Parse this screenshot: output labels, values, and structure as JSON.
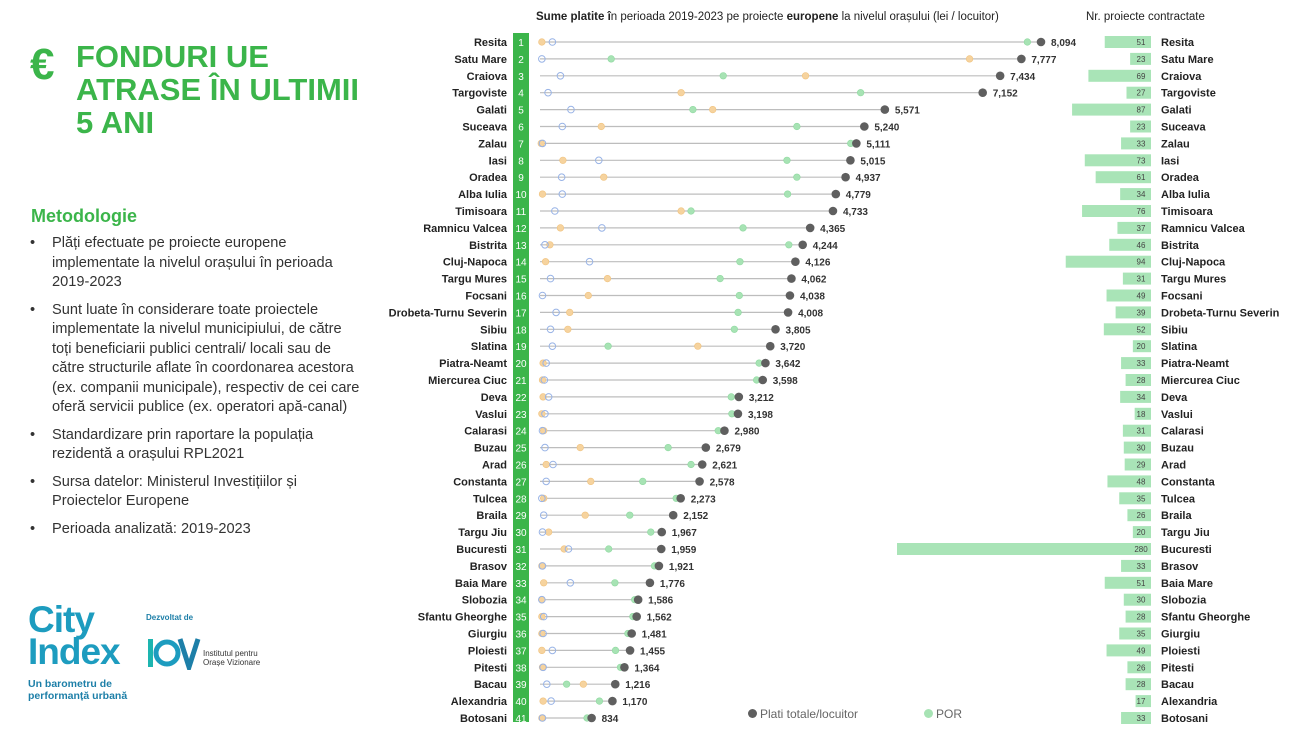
{
  "header": {
    "euro_symbol": "€",
    "title": "FONDURI UE ATRASE ÎN ULTIMII 5 ANI"
  },
  "methodology": {
    "heading": "Metodologie",
    "bullets": [
      "Plăți efectuate pe proiecte europene implementate la nivelul orașului în perioada 2019-2023",
      "Sunt luate în considerare toate proiectele implementate la nivelul municipiului, de către toți beneficiarii publici centrali/ locali sau de către structurile aflate în coordonarea acestora (ex. companii municipale), respectiv de cei care oferă servicii publice (ex. operatori apă-canal)",
      "Standardizare prin raportare la populația rezidentă a orașului RPL2021",
      "Sursa datelor: Ministerul Investițiilor și Proiectelor Europene",
      "Perioada analizată: 2019-2023"
    ]
  },
  "brand": {
    "name_line1": "City",
    "name_line2": "Index",
    "tagline": "Un barometru de performanță urbană",
    "developed_by": "Dezvoltat de",
    "partner_logo": "IOV",
    "partner_name": "Institutul pentru Orașe Vizionare"
  },
  "colors": {
    "green": "#3bb54a",
    "rank_bg": "#3bb54a",
    "total_dot": "#5f5f5f",
    "por_dot": "#a7e3b4",
    "blue_dot": "#b6c8ee",
    "orange_dot": "#f6d39e",
    "bar": "#a9e4b7",
    "line": "#bdbdbd"
  },
  "chart_data": {
    "type": "dot-plot",
    "title_parts": [
      {
        "text": "Sume platite î",
        "bold": true
      },
      {
        "text": "n perioada 2019-2023 pe proiecte ",
        "bold": false
      },
      {
        "text": "europene",
        "bold": true
      },
      {
        "text": " la nivelul orașului (lei / locuitor)",
        "bold": false
      }
    ],
    "bars_title": "Nr. proiecte contractate",
    "legend": [
      {
        "name": "Plati totale/locuitor",
        "color": "#5f5f5f"
      },
      {
        "name": "POR",
        "color": "#a7e3b4"
      }
    ],
    "x_range": [
      0,
      8500
    ],
    "bar_range": [
      0,
      280
    ],
    "cities": [
      {
        "rank": 1,
        "name": "Resita",
        "total": 8094,
        "por": 7874,
        "blue": 200,
        "orange": 30,
        "projects": 51
      },
      {
        "rank": 2,
        "name": "Satu Mare",
        "total": 7777,
        "por": 1150,
        "blue": 30,
        "orange": 6940,
        "projects": 23
      },
      {
        "rank": 3,
        "name": "Craiova",
        "total": 7434,
        "por": 2960,
        "blue": 330,
        "orange": 4290,
        "projects": 69
      },
      {
        "rank": 4,
        "name": "Targoviste",
        "total": 7152,
        "por": 5180,
        "blue": 130,
        "orange": 2280,
        "projects": 27
      },
      {
        "rank": 5,
        "name": "Galati",
        "total": 5571,
        "por": 2470,
        "blue": 500,
        "orange": 2790,
        "projects": 87
      },
      {
        "rank": 6,
        "name": "Suceava",
        "total": 5240,
        "por": 4150,
        "blue": 360,
        "orange": 990,
        "projects": 23
      },
      {
        "rank": 7,
        "name": "Zalau",
        "total": 5111,
        "por": 5020,
        "blue": 40,
        "orange": 20,
        "projects": 33
      },
      {
        "rank": 8,
        "name": "Iasi",
        "total": 5015,
        "por": 3990,
        "blue": 950,
        "orange": 370,
        "projects": 73
      },
      {
        "rank": 9,
        "name": "Oradea",
        "total": 4937,
        "por": 4150,
        "blue": 350,
        "orange": 1030,
        "projects": 61
      },
      {
        "rank": 10,
        "name": "Alba Iulia",
        "total": 4779,
        "por": 4000,
        "blue": 360,
        "orange": 40,
        "projects": 34
      },
      {
        "rank": 11,
        "name": "Timisoara",
        "total": 4733,
        "por": 2440,
        "blue": 240,
        "orange": 2280,
        "projects": 76
      },
      {
        "rank": 12,
        "name": "Ramnicu Valcea",
        "total": 4365,
        "por": 3280,
        "blue": 1000,
        "orange": 330,
        "projects": 37
      },
      {
        "rank": 13,
        "name": "Bistrita",
        "total": 4244,
        "por": 4020,
        "blue": 80,
        "orange": 160,
        "projects": 46
      },
      {
        "rank": 14,
        "name": "Cluj-Napoca",
        "total": 4126,
        "por": 3230,
        "blue": 800,
        "orange": 90,
        "projects": 94
      },
      {
        "rank": 15,
        "name": "Targu Mures",
        "total": 4062,
        "por": 2910,
        "blue": 170,
        "orange": 1090,
        "projects": 31
      },
      {
        "rank": 16,
        "name": "Focsani",
        "total": 4038,
        "por": 3220,
        "blue": 40,
        "orange": 780,
        "projects": 49
      },
      {
        "rank": 17,
        "name": "Drobeta-Turnu Severin",
        "total": 4008,
        "por": 3200,
        "blue": 260,
        "orange": 480,
        "projects": 39
      },
      {
        "rank": 18,
        "name": "Sibiu",
        "total": 3805,
        "por": 3140,
        "blue": 170,
        "orange": 450,
        "projects": 52
      },
      {
        "rank": 19,
        "name": "Slatina",
        "total": 3720,
        "por": 1100,
        "blue": 200,
        "orange": 2550,
        "projects": 20
      },
      {
        "rank": 20,
        "name": "Piatra-Neamt",
        "total": 3642,
        "por": 3540,
        "blue": 100,
        "orange": 50,
        "projects": 33
      },
      {
        "rank": 21,
        "name": "Miercurea Ciuc",
        "total": 3598,
        "por": 3500,
        "blue": 70,
        "orange": 40,
        "projects": 28
      },
      {
        "rank": 22,
        "name": "Deva",
        "total": 3212,
        "por": 3090,
        "blue": 140,
        "orange": 50,
        "projects": 34
      },
      {
        "rank": 23,
        "name": "Vaslui",
        "total": 3198,
        "por": 3100,
        "blue": 80,
        "orange": 30,
        "projects": 18
      },
      {
        "rank": 24,
        "name": "Calarasi",
        "total": 2980,
        "por": 2880,
        "blue": 40,
        "orange": 60,
        "projects": 31
      },
      {
        "rank": 25,
        "name": "Buzau",
        "total": 2679,
        "por": 2070,
        "blue": 80,
        "orange": 650,
        "projects": 30
      },
      {
        "rank": 26,
        "name": "Arad",
        "total": 2621,
        "por": 2440,
        "blue": 210,
        "orange": 100,
        "projects": 29
      },
      {
        "rank": 27,
        "name": "Constanta",
        "total": 2578,
        "por": 1660,
        "blue": 100,
        "orange": 820,
        "projects": 48
      },
      {
        "rank": 28,
        "name": "Tulcea",
        "total": 2273,
        "por": 2200,
        "blue": 30,
        "orange": 60,
        "projects": 35
      },
      {
        "rank": 29,
        "name": "Braila",
        "total": 2152,
        "por": 1450,
        "blue": 60,
        "orange": 730,
        "projects": 26
      },
      {
        "rank": 30,
        "name": "Targu Jiu",
        "total": 1967,
        "por": 1790,
        "blue": 40,
        "orange": 140,
        "projects": 20
      },
      {
        "rank": 31,
        "name": "Bucuresti",
        "total": 1959,
        "por": 1110,
        "blue": 460,
        "orange": 390,
        "projects": 280
      },
      {
        "rank": 32,
        "name": "Brasov",
        "total": 1921,
        "por": 1850,
        "blue": 40,
        "orange": 30,
        "projects": 33
      },
      {
        "rank": 33,
        "name": "Baia Mare",
        "total": 1776,
        "por": 1210,
        "blue": 490,
        "orange": 60,
        "projects": 51
      },
      {
        "rank": 34,
        "name": "Slobozia",
        "total": 1586,
        "por": 1530,
        "blue": 30,
        "orange": 30,
        "projects": 30
      },
      {
        "rank": 35,
        "name": "Sfantu Gheorghe",
        "total": 1562,
        "por": 1500,
        "blue": 60,
        "orange": 30,
        "projects": 28
      },
      {
        "rank": 36,
        "name": "Giurgiu",
        "total": 1481,
        "por": 1420,
        "blue": 50,
        "orange": 30,
        "projects": 35
      },
      {
        "rank": 37,
        "name": "Ploiesti",
        "total": 1455,
        "por": 1220,
        "blue": 200,
        "orange": 30,
        "projects": 49
      },
      {
        "rank": 38,
        "name": "Pitesti",
        "total": 1364,
        "por": 1300,
        "blue": 50,
        "orange": 40,
        "projects": 26
      },
      {
        "rank": 39,
        "name": "Bacau",
        "total": 1216,
        "por": 430,
        "blue": 110,
        "orange": 700,
        "projects": 28
      },
      {
        "rank": 40,
        "name": "Alexandria",
        "total": 1170,
        "por": 960,
        "blue": 180,
        "orange": 50,
        "projects": 17
      },
      {
        "rank": 41,
        "name": "Botosani",
        "total": 834,
        "por": 760,
        "blue": 40,
        "orange": 30,
        "projects": 33
      }
    ]
  }
}
